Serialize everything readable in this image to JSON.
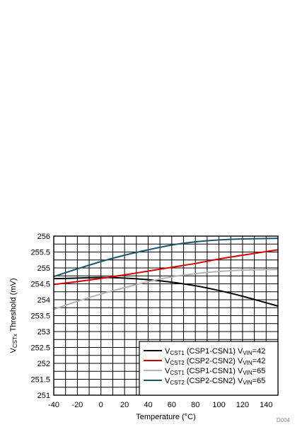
{
  "chart_data": {
    "type": "line",
    "xlabel": "Temperature (°C)",
    "ylabel_main": "V",
    "ylabel_sub": "CSTx",
    "ylabel_rest": " Threshold (mV)",
    "xlim": [
      -40,
      150
    ],
    "ylim": [
      251,
      256
    ],
    "x_ticks": [
      "-40",
      "-20",
      "0",
      "20",
      "40",
      "60",
      "80",
      "100",
      "120",
      "140"
    ],
    "y_ticks": [
      "251",
      "251.5",
      "252",
      "252.5",
      "253",
      "253.5",
      "254",
      "254.5",
      "255",
      "255.5",
      "256"
    ],
    "grid": true,
    "legend_position": "bottom-right",
    "series": [
      {
        "name": "VCST1 (CSP1-CSN1) VVIN=42",
        "label_parts": [
          "V",
          "CST1",
          " (CSP1-CSN1) V",
          "VIN",
          "=42"
        ],
        "color": "#000000",
        "x": [
          -40,
          -20,
          0,
          20,
          40,
          60,
          80,
          100,
          120,
          150
        ],
        "y": [
          254.66,
          254.68,
          254.7,
          254.68,
          254.63,
          254.55,
          254.44,
          254.29,
          254.11,
          253.8
        ]
      },
      {
        "name": "VCST2 (CSP2-CSN2) VVIN=42",
        "label_parts": [
          "V",
          "CST2",
          " (CSP2-CSN2) V",
          "VIN",
          "=42"
        ],
        "color": "#d40000",
        "x": [
          -40,
          -20,
          0,
          20,
          40,
          60,
          80,
          100,
          120,
          150
        ],
        "y": [
          254.48,
          254.57,
          254.67,
          254.78,
          254.9,
          255.02,
          255.14,
          255.28,
          255.4,
          255.57
        ]
      },
      {
        "name": "VCST1 (CSP1-CSN1) VVIN=65",
        "label_parts": [
          "V",
          "CST1",
          " (CSP1-CSN1) V",
          "VIN",
          "=65"
        ],
        "color": "#b3b3b3",
        "x": [
          -40,
          -20,
          0,
          20,
          40,
          60,
          80,
          100,
          120,
          150
        ],
        "y": [
          253.7,
          253.95,
          254.18,
          254.38,
          254.57,
          254.72,
          254.82,
          254.89,
          254.93,
          254.95
        ]
      },
      {
        "name": "VCST2 (CSP2-CSN2) VVIN=65",
        "label_parts": [
          "V",
          "CST2",
          " (CSP2-CSN2) V",
          "VIN",
          "=65"
        ],
        "color": "#1f5470",
        "x": [
          -40,
          -20,
          0,
          20,
          40,
          60,
          80,
          100,
          120,
          150
        ],
        "y": [
          254.73,
          254.97,
          255.2,
          255.4,
          255.57,
          255.72,
          255.82,
          255.88,
          255.91,
          255.93
        ]
      }
    ],
    "watermark": "D004"
  }
}
